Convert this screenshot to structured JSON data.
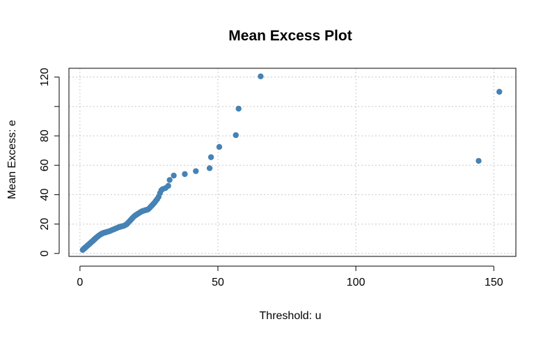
{
  "chart_data": {
    "type": "scatter",
    "title": "Mean Excess Plot",
    "xlabel": "Threshold: u",
    "ylabel": "Mean Excess: e",
    "xlim": [
      -4,
      158
    ],
    "ylim": [
      -2,
      126
    ],
    "x_ticks": [
      0,
      50,
      100,
      150
    ],
    "y_ticks": [
      0,
      20,
      40,
      60,
      80,
      100,
      120
    ],
    "y_tick_labels": [
      "0",
      "20",
      "40",
      "60",
      "80",
      "",
      "120"
    ],
    "grid": true,
    "point_color": "#4682B4",
    "grid_color": "#c8c8c8",
    "axis_color": "#000000",
    "series": [
      {
        "points": [
          [
            1.0,
            2.4
          ],
          [
            1.2,
            2.8
          ],
          [
            1.4,
            3.1
          ],
          [
            1.6,
            3.5
          ],
          [
            1.8,
            3.8
          ],
          [
            2.0,
            4.1
          ],
          [
            2.2,
            4.5
          ],
          [
            2.4,
            4.8
          ],
          [
            2.6,
            5.1
          ],
          [
            2.8,
            5.5
          ],
          [
            3.0,
            5.8
          ],
          [
            3.2,
            6.1
          ],
          [
            3.4,
            6.4
          ],
          [
            3.6,
            6.8
          ],
          [
            3.8,
            7.1
          ],
          [
            4.0,
            7.5
          ],
          [
            4.2,
            7.8
          ],
          [
            4.4,
            8.1
          ],
          [
            4.6,
            8.5
          ],
          [
            4.8,
            8.8
          ],
          [
            5.0,
            9.2
          ],
          [
            5.2,
            9.5
          ],
          [
            5.4,
            9.9
          ],
          [
            5.6,
            10.2
          ],
          [
            5.8,
            10.6
          ],
          [
            6.0,
            10.9
          ],
          [
            6.3,
            11.3
          ],
          [
            6.6,
            11.8
          ],
          [
            6.9,
            12.2
          ],
          [
            7.2,
            12.6
          ],
          [
            7.5,
            13.0
          ],
          [
            7.8,
            13.3
          ],
          [
            8.1,
            13.6
          ],
          [
            8.4,
            13.9
          ],
          [
            8.8,
            14.1
          ],
          [
            9.2,
            14.3
          ],
          [
            9.6,
            14.5
          ],
          [
            10.0,
            14.8
          ],
          [
            10.5,
            15.0
          ],
          [
            11.0,
            15.4
          ],
          [
            11.5,
            15.8
          ],
          [
            12.0,
            16.2
          ],
          [
            12.5,
            16.6
          ],
          [
            13.0,
            17.0
          ],
          [
            13.5,
            17.4
          ],
          [
            14.0,
            17.8
          ],
          [
            14.5,
            18.1
          ],
          [
            15.0,
            18.4
          ],
          [
            15.5,
            18.6
          ],
          [
            16.0,
            18.9
          ],
          [
            16.5,
            19.4
          ],
          [
            17.0,
            20.0
          ],
          [
            17.5,
            21.0
          ],
          [
            18.0,
            22.0
          ],
          [
            18.5,
            23.0
          ],
          [
            19.0,
            24.0
          ],
          [
            19.5,
            25.0
          ],
          [
            20.0,
            25.8
          ],
          [
            20.5,
            26.4
          ],
          [
            21.0,
            27.0
          ],
          [
            21.5,
            27.6
          ],
          [
            22.0,
            28.2
          ],
          [
            22.5,
            28.7
          ],
          [
            23.0,
            29.0
          ],
          [
            23.5,
            29.3
          ],
          [
            24.0,
            29.6
          ],
          [
            24.5,
            29.8
          ],
          [
            25.0,
            30.5
          ],
          [
            25.5,
            31.5
          ],
          [
            26.0,
            32.5
          ],
          [
            26.5,
            33.5
          ],
          [
            27.0,
            34.5
          ],
          [
            27.5,
            35.8
          ],
          [
            28.0,
            37.0
          ],
          [
            28.5,
            38.5
          ],
          [
            29.0,
            41.0
          ],
          [
            29.5,
            43.0
          ],
          [
            30.0,
            43.8
          ],
          [
            31.0,
            44.5
          ],
          [
            32.0,
            46.0
          ],
          [
            32.5,
            50.0
          ],
          [
            34.0,
            53.0
          ],
          [
            38.0,
            54.0
          ],
          [
            42.0,
            56.0
          ],
          [
            47.0,
            58.0
          ],
          [
            47.5,
            65.5
          ],
          [
            50.5,
            72.5
          ],
          [
            56.5,
            80.5
          ],
          [
            57.5,
            98.5
          ],
          [
            65.5,
            120.5
          ],
          [
            144.5,
            63.0
          ],
          [
            152.0,
            110.0
          ]
        ]
      }
    ]
  }
}
